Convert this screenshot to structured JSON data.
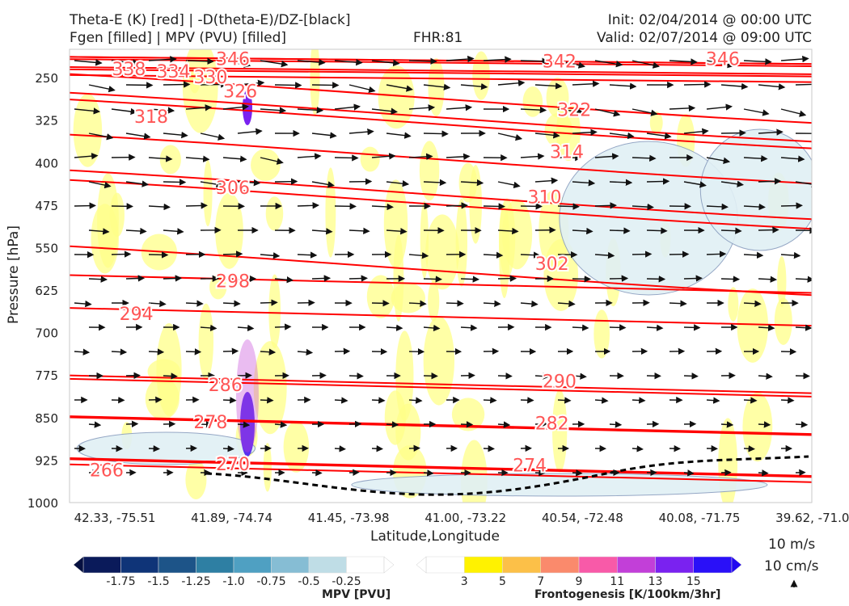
{
  "header": {
    "title_left_1": "Theta-E (K) [red] | -D(theta-E)/DZ-[black]",
    "title_left_2": "Fgen [filled] | MPV (PVU) [filled]",
    "fhr": "FHR:81",
    "init": "Init: 02/04/2014 @ 00:00 UTC",
    "valid": "Valid: 02/07/2014 @ 09:00 UTC"
  },
  "colors": {
    "theta_e": "#ff0000",
    "theta_e_label": "#ff5555",
    "vector": "#111111",
    "freezing_line": "#000000",
    "mpv_outline": "#8a9ebf",
    "fgen_light": "#ffff88"
  },
  "chart_data": {
    "type": "cross-section",
    "xlabel": "Latitude,Longitude",
    "ylabel": "Pressure [hPa]",
    "y_scale": "linear-inverted",
    "ylim": [
      1000,
      200
    ],
    "y_ticks": [
      250,
      325,
      400,
      475,
      550,
      625,
      700,
      775,
      850,
      925,
      1000
    ],
    "x_ticks": [
      "42.33, -75.51",
      "41.89, -74.74",
      "41.45, -73.98",
      "41.00, -73.22",
      "40.54, -72.48",
      "40.08, -71.75",
      "39.62, -71.03"
    ],
    "theta_e_contours": [
      {
        "value": 266,
        "label_x": 0.05,
        "label_p": 944
      },
      {
        "value": 270,
        "label_x": 0.22,
        "label_p": 933
      },
      {
        "value": 274,
        "label_x": 0.62,
        "label_p": 935
      },
      {
        "value": 278,
        "label_x": 0.19,
        "label_p": 859
      },
      {
        "value": 282,
        "label_x": 0.65,
        "label_p": 861
      },
      {
        "value": 286,
        "label_x": 0.21,
        "label_p": 793
      },
      {
        "value": 290,
        "label_x": 0.66,
        "label_p": 787
      },
      {
        "value": 294,
        "label_x": 0.09,
        "label_p": 668
      },
      {
        "value": 298,
        "label_x": 0.22,
        "label_p": 610
      },
      {
        "value": 302,
        "label_x": 0.65,
        "label_p": 579
      },
      {
        "value": 306,
        "label_x": 0.22,
        "label_p": 445
      },
      {
        "value": 310,
        "label_x": 0.64,
        "label_p": 462
      },
      {
        "value": 314,
        "label_x": 0.67,
        "label_p": 382
      },
      {
        "value": 318,
        "label_x": 0.11,
        "label_p": 320
      },
      {
        "value": 322,
        "label_x": 0.68,
        "label_p": 308
      },
      {
        "value": 326,
        "label_x": 0.23,
        "label_p": 275
      },
      {
        "value": 330,
        "label_x": 0.19,
        "label_p": 250
      },
      {
        "value": 334,
        "label_x": 0.14,
        "label_p": 240
      },
      {
        "value": 338,
        "label_x": 0.08,
        "label_p": 236
      },
      {
        "value": 342,
        "label_x": 0.66,
        "label_p": 222
      },
      {
        "value": 346,
        "label_x": 0.22,
        "label_p": 218
      },
      {
        "value": 346,
        "label_x": 0.88,
        "label_p": 218
      }
    ],
    "mpv_colorbar": {
      "title": "MPV [PVU]",
      "ticks": [
        "-1.75",
        "-1.5",
        "-1.25",
        "-1.0",
        "-0.75",
        "-0.5",
        "-0.25"
      ],
      "colors": [
        "#0a1a5a",
        "#0f3478",
        "#1d5488",
        "#2e7fa3",
        "#4fa0c2",
        "#86bdd4",
        "#bfdde6",
        "#ffffff"
      ]
    },
    "fgen_colorbar": {
      "title": "Frontogenesis [K/100km/3hr]",
      "ticks": [
        "3",
        "5",
        "7",
        "9",
        "11",
        "13",
        "15"
      ],
      "colors": [
        "#ffffff",
        "#fff200",
        "#fcc048",
        "#fa8a6c",
        "#f85aa8",
        "#c23fd8",
        "#7a22f0",
        "#2a10f8"
      ]
    },
    "vector_reference": {
      "horizontal": "10 m/s",
      "vertical": "10 cm/s"
    }
  }
}
